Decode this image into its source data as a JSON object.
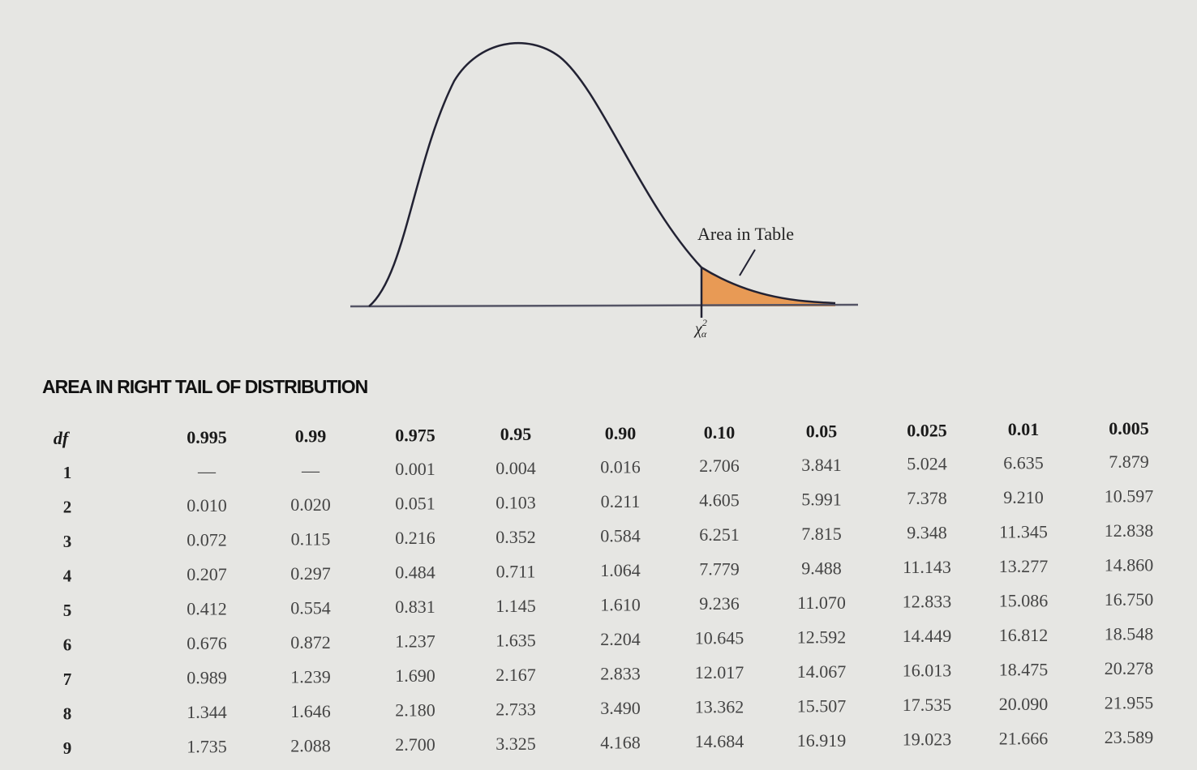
{
  "diagram": {
    "area_label": "Area in Table",
    "symbol": "χ",
    "symbol_sup": "2",
    "symbol_sub": "α"
  },
  "table": {
    "title": "AREA IN RIGHT TAIL OF DISTRIBUTION",
    "header": [
      "df",
      "0.995",
      "0.99",
      "0.975",
      "0.95",
      "0.90",
      "0.10",
      "0.05",
      "0.025",
      "0.01",
      "0.005"
    ],
    "rows": [
      [
        "1",
        "—",
        "—",
        "0.001",
        "0.004",
        "0.016",
        "2.706",
        "3.841",
        "5.024",
        "6.635",
        "7.879"
      ],
      [
        "2",
        "0.010",
        "0.020",
        "0.051",
        "0.103",
        "0.211",
        "4.605",
        "5.991",
        "7.378",
        "9.210",
        "10.597"
      ],
      [
        "3",
        "0.072",
        "0.115",
        "0.216",
        "0.352",
        "0.584",
        "6.251",
        "7.815",
        "9.348",
        "11.345",
        "12.838"
      ],
      [
        "4",
        "0.207",
        "0.297",
        "0.484",
        "0.711",
        "1.064",
        "7.779",
        "9.488",
        "11.143",
        "13.277",
        "14.860"
      ],
      [
        "5",
        "0.412",
        "0.554",
        "0.831",
        "1.145",
        "1.610",
        "9.236",
        "11.070",
        "12.833",
        "15.086",
        "16.750"
      ],
      [
        "6",
        "0.676",
        "0.872",
        "1.237",
        "1.635",
        "2.204",
        "10.645",
        "12.592",
        "14.449",
        "16.812",
        "18.548"
      ],
      [
        "7",
        "0.989",
        "1.239",
        "1.690",
        "2.167",
        "2.833",
        "12.017",
        "14.067",
        "16.013",
        "18.475",
        "20.278"
      ],
      [
        "8",
        "1.344",
        "1.646",
        "2.180",
        "2.733",
        "3.490",
        "13.362",
        "15.507",
        "17.535",
        "20.090",
        "21.955"
      ],
      [
        "9",
        "1.735",
        "2.088",
        "2.700",
        "3.325",
        "4.168",
        "14.684",
        "16.919",
        "19.023",
        "21.666",
        "23.589"
      ]
    ]
  }
}
